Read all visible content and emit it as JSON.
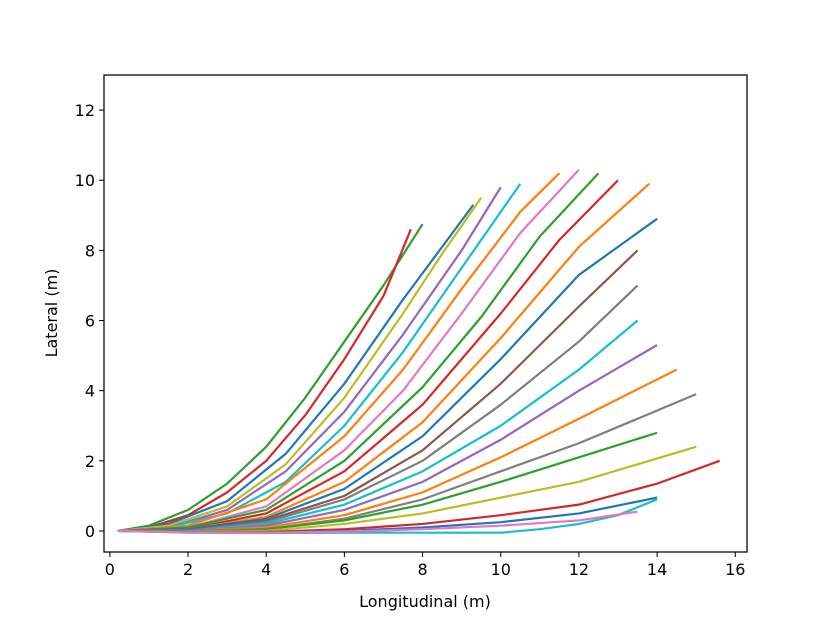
{
  "chart_data": {
    "type": "line",
    "title": "",
    "xlabel": "Longitudinal (m)",
    "ylabel": "Lateral (m)",
    "xlim": [
      -0.15,
      16.3
    ],
    "ylim": [
      -0.6,
      13.0
    ],
    "xticks": [
      0,
      2,
      4,
      6,
      8,
      10,
      12,
      14,
      16
    ],
    "yticks": [
      0,
      2,
      4,
      6,
      8,
      10,
      12
    ],
    "xtick_labels": [
      "0",
      "2",
      "4",
      "6",
      "8",
      "10",
      "12",
      "14",
      "16"
    ],
    "ytick_labels": [
      "0",
      "2",
      "4",
      "6",
      "8",
      "10",
      "12"
    ],
    "grid": false,
    "legend": "none",
    "palette": [
      "#1f77b4",
      "#ff7f0e",
      "#2ca02c",
      "#d62728",
      "#9467bd",
      "#8c564b",
      "#e377c2",
      "#7f7f7f",
      "#bcbd22",
      "#17becf"
    ],
    "series": [
      {
        "color": "#2ca02c",
        "x": [
          0.2,
          1.0,
          2.0,
          3.0,
          4.0,
          5.0,
          6.0,
          7.0,
          8.0
        ],
        "y": [
          0.0,
          0.15,
          0.6,
          1.35,
          2.4,
          3.8,
          5.4,
          7.0,
          8.75
        ]
      },
      {
        "color": "#d62728",
        "x": [
          0.2,
          1.0,
          2.0,
          3.0,
          4.0,
          5.0,
          6.0,
          7.0,
          7.7
        ],
        "y": [
          0.0,
          0.1,
          0.45,
          1.1,
          2.0,
          3.3,
          4.9,
          6.7,
          8.6
        ]
      },
      {
        "color": "#1f77b4",
        "x": [
          0.2,
          1.5,
          3.0,
          4.5,
          6.0,
          7.5,
          8.5,
          9.3
        ],
        "y": [
          0.0,
          0.2,
          0.85,
          2.2,
          4.2,
          6.6,
          8.1,
          9.3
        ]
      },
      {
        "color": "#bcbd22",
        "x": [
          0.2,
          1.5,
          3.0,
          4.5,
          6.0,
          7.5,
          8.5,
          9.5
        ],
        "y": [
          0.0,
          0.15,
          0.7,
          1.9,
          3.8,
          6.2,
          7.9,
          9.5
        ]
      },
      {
        "color": "#9467bd",
        "x": [
          0.2,
          1.5,
          3.0,
          4.5,
          6.0,
          7.5,
          9.0,
          10.0
        ],
        "y": [
          0.0,
          0.1,
          0.6,
          1.7,
          3.4,
          5.6,
          8.0,
          9.8
        ]
      },
      {
        "color": "#17becf",
        "x": [
          0.2,
          1.5,
          3.0,
          4.5,
          6.0,
          7.5,
          9.0,
          10.5
        ],
        "y": [
          0.0,
          0.1,
          0.5,
          1.4,
          3.0,
          5.1,
          7.5,
          9.9
        ]
      },
      {
        "color": "#ff7f0e",
        "x": [
          0.2,
          2.0,
          4.0,
          6.0,
          7.5,
          9.0,
          10.5,
          11.5
        ],
        "y": [
          0.0,
          0.15,
          0.9,
          2.7,
          4.6,
          6.9,
          9.1,
          10.2
        ]
      },
      {
        "color": "#e377c2",
        "x": [
          0.2,
          2.0,
          4.0,
          6.0,
          7.5,
          9.0,
          10.5,
          12.0
        ],
        "y": [
          0.0,
          0.1,
          0.7,
          2.3,
          4.0,
          6.2,
          8.5,
          10.3
        ]
      },
      {
        "color": "#2ca02c",
        "x": [
          0.2,
          2.0,
          4.0,
          6.0,
          8.0,
          9.5,
          11.0,
          12.5
        ],
        "y": [
          0.0,
          0.1,
          0.6,
          2.0,
          4.1,
          6.1,
          8.4,
          10.2
        ]
      },
      {
        "color": "#d62728",
        "x": [
          0.2,
          2.0,
          4.0,
          6.0,
          8.0,
          10.0,
          11.5,
          13.0
        ],
        "y": [
          0.0,
          0.05,
          0.5,
          1.7,
          3.6,
          6.2,
          8.3,
          10.0
        ]
      },
      {
        "color": "#ff7f0e",
        "x": [
          0.2,
          2.0,
          4.0,
          6.0,
          8.0,
          10.0,
          12.0,
          13.8
        ],
        "y": [
          0.0,
          0.05,
          0.4,
          1.4,
          3.1,
          5.5,
          8.1,
          9.9
        ]
      },
      {
        "color": "#1f77b4",
        "x": [
          0.2,
          2.0,
          4.0,
          6.0,
          8.0,
          10.0,
          12.0,
          14.0
        ],
        "y": [
          0.0,
          0.05,
          0.35,
          1.2,
          2.7,
          4.9,
          7.3,
          8.9
        ]
      },
      {
        "color": "#8c564b",
        "x": [
          0.2,
          2.0,
          4.0,
          6.0,
          8.0,
          10.0,
          12.0,
          13.5
        ],
        "y": [
          0.0,
          0.0,
          0.3,
          1.0,
          2.3,
          4.2,
          6.4,
          8.0
        ]
      },
      {
        "color": "#7f7f7f",
        "x": [
          0.2,
          2.0,
          4.0,
          6.0,
          8.0,
          10.0,
          12.0,
          13.5
        ],
        "y": [
          0.0,
          0.0,
          0.25,
          0.9,
          2.0,
          3.6,
          5.4,
          7.0
        ]
      },
      {
        "color": "#17becf",
        "x": [
          0.2,
          2.0,
          4.0,
          6.0,
          8.0,
          10.0,
          12.0,
          13.5
        ],
        "y": [
          0.0,
          0.0,
          0.2,
          0.75,
          1.7,
          3.0,
          4.6,
          6.0
        ]
      },
      {
        "color": "#9467bd",
        "x": [
          0.2,
          2.0,
          4.0,
          6.0,
          8.0,
          10.0,
          12.0,
          14.0
        ],
        "y": [
          0.0,
          0.0,
          0.15,
          0.6,
          1.4,
          2.6,
          4.0,
          5.3
        ]
      },
      {
        "color": "#ff7f0e",
        "x": [
          0.2,
          2.0,
          4.0,
          6.0,
          8.0,
          10.0,
          12.0,
          14.5
        ],
        "y": [
          0.0,
          0.0,
          0.1,
          0.45,
          1.1,
          2.1,
          3.2,
          4.6
        ]
      },
      {
        "color": "#7f7f7f",
        "x": [
          0.2,
          2.0,
          4.0,
          6.0,
          8.0,
          10.0,
          12.0,
          15.0
        ],
        "y": [
          0.0,
          0.0,
          0.05,
          0.35,
          0.9,
          1.7,
          2.5,
          3.9
        ]
      },
      {
        "color": "#2ca02c",
        "x": [
          0.2,
          2.0,
          4.0,
          6.0,
          8.0,
          10.0,
          12.0,
          14.0
        ],
        "y": [
          0.0,
          -0.02,
          0.05,
          0.3,
          0.75,
          1.4,
          2.1,
          2.8
        ]
      },
      {
        "color": "#bcbd22",
        "x": [
          0.2,
          2.0,
          4.0,
          6.0,
          8.0,
          10.0,
          12.0,
          15.0
        ],
        "y": [
          0.0,
          -0.02,
          0.0,
          0.2,
          0.5,
          0.95,
          1.4,
          2.4
        ]
      },
      {
        "color": "#d62728",
        "x": [
          0.2,
          2.0,
          4.0,
          6.0,
          8.0,
          10.0,
          12.0,
          14.0,
          15.6
        ],
        "y": [
          0.0,
          -0.03,
          -0.03,
          0.05,
          0.2,
          0.45,
          0.75,
          1.35,
          2.0
        ]
      },
      {
        "color": "#1f77b4",
        "x": [
          0.2,
          2.0,
          4.0,
          6.0,
          8.0,
          10.0,
          12.0,
          14.0
        ],
        "y": [
          0.0,
          -0.03,
          -0.05,
          0.0,
          0.1,
          0.25,
          0.5,
          0.95
        ]
      },
      {
        "color": "#17becf",
        "x": [
          0.2,
          2.0,
          4.0,
          6.0,
          8.0,
          10.0,
          11.0,
          12.0,
          13.0,
          14.0
        ],
        "y": [
          0.0,
          -0.05,
          -0.06,
          -0.05,
          -0.05,
          -0.05,
          0.05,
          0.2,
          0.45,
          0.9
        ]
      },
      {
        "color": "#e377c2",
        "x": [
          0.2,
          2.0,
          4.0,
          6.0,
          8.0,
          10.0,
          12.0,
          13.5
        ],
        "y": [
          0.0,
          -0.04,
          -0.05,
          -0.02,
          0.05,
          0.15,
          0.3,
          0.55
        ]
      }
    ]
  }
}
